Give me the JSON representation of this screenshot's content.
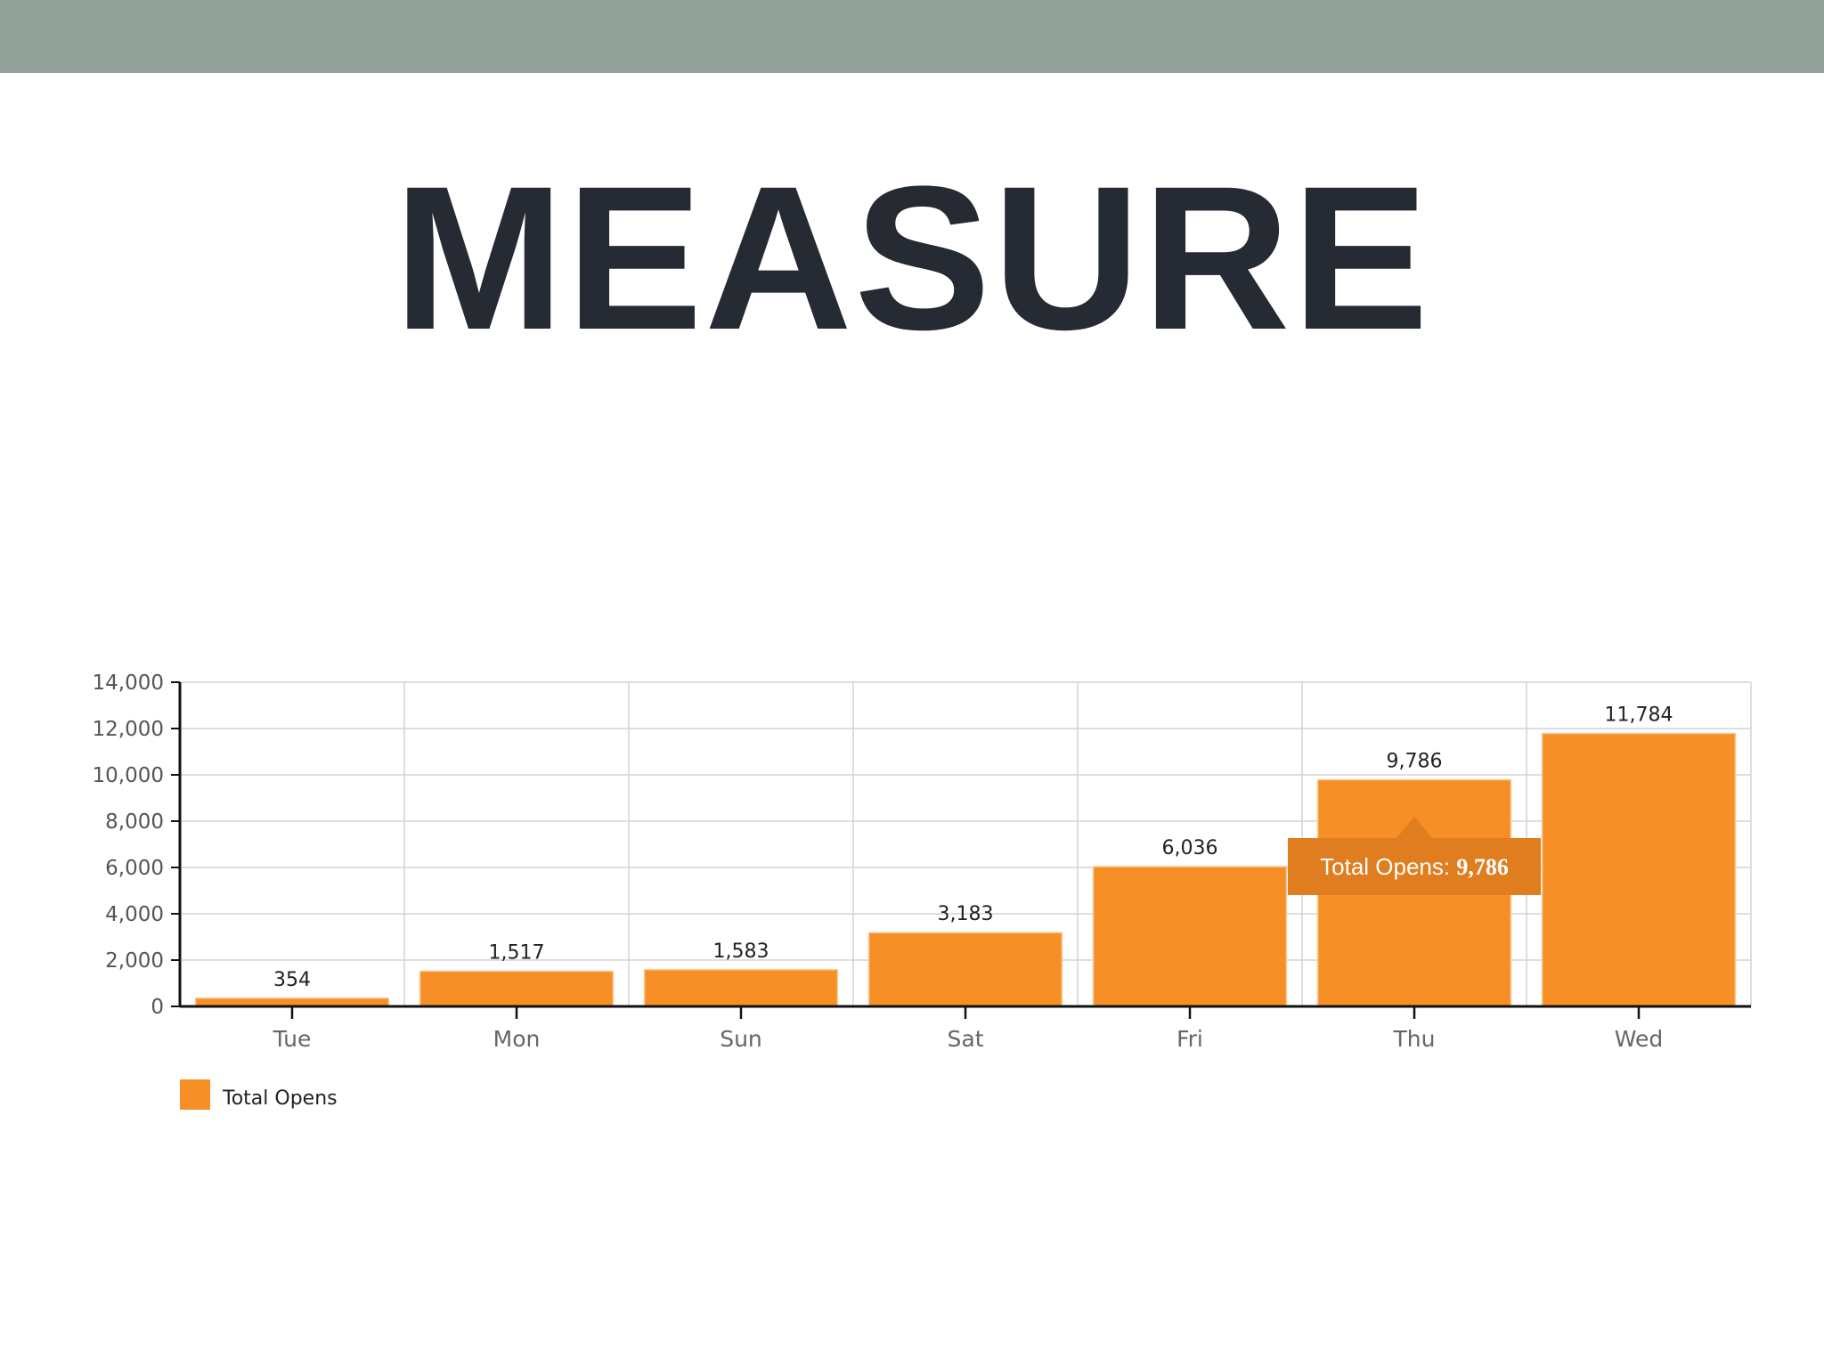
{
  "slide": {
    "title": "MEASURE"
  },
  "colors": {
    "header_bar": "#92a199",
    "bar": "#f78f27",
    "tooltip": "#e07d1e",
    "title": "#262a33"
  },
  "chart_data": {
    "type": "bar",
    "title": "",
    "xlabel": "",
    "ylabel": "",
    "categories": [
      "Tue",
      "Mon",
      "Sun",
      "Sat",
      "Fri",
      "Thu",
      "Wed"
    ],
    "series": [
      {
        "name": "Total Opens",
        "values": [
          354,
          1517,
          1583,
          3183,
          6036,
          9786,
          11784
        ]
      }
    ],
    "data_labels": [
      "354",
      "1,517",
      "1,583",
      "3,183",
      "6,036",
      "9,786",
      "11,784"
    ],
    "ylim": [
      0,
      14000
    ],
    "yticks": [
      0,
      2000,
      4000,
      6000,
      8000,
      10000,
      12000,
      14000
    ],
    "ytick_labels": [
      "0",
      "2,000",
      "4,000",
      "6,000",
      "8,000",
      "10,000",
      "12,000",
      "14,000"
    ],
    "grid": true,
    "legend": {
      "placement": "bottom-left",
      "label": "Total Opens"
    },
    "tooltip": {
      "category": "Thu",
      "label": "Total Opens:",
      "value": "9,786"
    }
  }
}
